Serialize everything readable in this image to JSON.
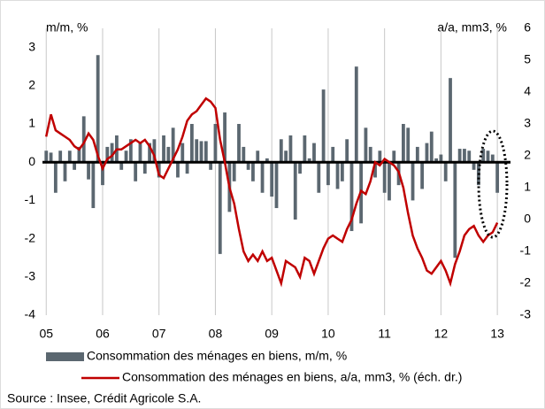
{
  "chart_data": {
    "type": "combo",
    "y_label": "m/m, %",
    "y2_label": "a/a, mm3, %",
    "source": "Source :  Insee, Crédit Agricole S.A.",
    "x": [
      0,
      1,
      2,
      3,
      4,
      5,
      6,
      7,
      8,
      9,
      10,
      11,
      12,
      13,
      14,
      15,
      16,
      17,
      18,
      19,
      20,
      21,
      22,
      23,
      24,
      25,
      26,
      27,
      28,
      29,
      30,
      31,
      32,
      33,
      34,
      35,
      36,
      37,
      38,
      39,
      40,
      41,
      42,
      43,
      44,
      45,
      46,
      47,
      48,
      49,
      50,
      51,
      52,
      53,
      54,
      55,
      56,
      57,
      58,
      59,
      60,
      61,
      62,
      63,
      64,
      65,
      66,
      67,
      68,
      69,
      70,
      71,
      72,
      73,
      74,
      75,
      76,
      77,
      78,
      79,
      80,
      81,
      82,
      83,
      84,
      85,
      86,
      87,
      88,
      89,
      90,
      91,
      92,
      93,
      94,
      95,
      96
    ],
    "xlim": [
      -0.8,
      98.8
    ],
    "xticks": [
      {
        "value": 0,
        "label": "05"
      },
      {
        "value": 12,
        "label": "06"
      },
      {
        "value": 24,
        "label": "07"
      },
      {
        "value": 36,
        "label": "08"
      },
      {
        "value": 48,
        "label": "09"
      },
      {
        "value": 60,
        "label": "10"
      },
      {
        "value": 72,
        "label": "11"
      },
      {
        "value": 84,
        "label": "12"
      },
      {
        "value": 96,
        "label": "13"
      }
    ],
    "ylim": [
      -4,
      3.5
    ],
    "yticks": [
      -4,
      -3,
      -2,
      -1,
      0,
      1,
      2,
      3
    ],
    "y2lim": [
      -3,
      6
    ],
    "y2ticks": [
      -3,
      -2,
      -1,
      0,
      1,
      2,
      3,
      4,
      5,
      6
    ],
    "grid": true,
    "series": [
      {
        "name": "Consommation des ménages en biens, m/m, %",
        "type": "bar",
        "color": "#5b6770",
        "values": [
          0.3,
          0.25,
          -0.8,
          0.3,
          -0.5,
          0.3,
          -0.2,
          0.4,
          1.2,
          -0.45,
          -1.2,
          2.8,
          -0.6,
          0.4,
          0.5,
          0.7,
          -0.2,
          0.3,
          0.6,
          -0.5,
          0.5,
          -0.3,
          0.5,
          0.6,
          -0.4,
          0.7,
          0.4,
          0.9,
          -0.4,
          0.5,
          -0.3,
          1.0,
          0.6,
          0.55,
          0.55,
          -0.2,
          1.0,
          -2.4,
          1.3,
          -1.3,
          -0.5,
          1.0,
          0.4,
          -0.2,
          -0.5,
          0.3,
          -0.8,
          0.1,
          -0.9,
          -1.2,
          0.6,
          0.3,
          0.7,
          -1.5,
          -0.3,
          0.7,
          0.1,
          0.5,
          -0.8,
          1.9,
          -0.6,
          0.4,
          -0.7,
          -0.5,
          0.6,
          -1.8,
          2.5,
          -1.6,
          0.9,
          0.4,
          -0.4,
          0.3,
          -0.8,
          -1.0,
          0.3,
          -0.6,
          1.0,
          0.9,
          -1.0,
          0.4,
          -0.7,
          0.5,
          0.8,
          0.1,
          0.2,
          -0.5,
          2.2,
          -2.5,
          0.35,
          0.35,
          0.3,
          -0.2,
          -0.6,
          0.35,
          0.3,
          0.2,
          -0.8
        ]
      },
      {
        "name": "Consommation des ménages en biens, a/a, mm3, % (éch. dr.)",
        "type": "line",
        "axis": "y2",
        "color": "#c00000",
        "values": [
          2.6,
          3.3,
          2.8,
          2.7,
          2.6,
          2.5,
          2.3,
          2.2,
          2.4,
          2.7,
          2.5,
          2.0,
          1.6,
          1.9,
          2.0,
          2.2,
          2.2,
          2.3,
          2.4,
          2.5,
          2.4,
          2.5,
          2.3,
          2.0,
          1.4,
          1.3,
          1.6,
          1.9,
          2.2,
          2.6,
          3.1,
          3.3,
          3.4,
          3.6,
          3.8,
          3.7,
          3.5,
          2.5,
          1.8,
          1.0,
          0.5,
          -0.3,
          -1.0,
          -1.3,
          -1.1,
          -1.3,
          -1.0,
          -1.3,
          -1.2,
          -1.6,
          -2.0,
          -1.3,
          -1.4,
          -1.5,
          -1.8,
          -1.2,
          -1.3,
          -1.7,
          -1.3,
          -0.9,
          -0.6,
          -0.5,
          -0.6,
          -0.7,
          -0.3,
          0.0,
          0.5,
          0.9,
          0.8,
          1.2,
          1.8,
          1.7,
          1.9,
          1.8,
          1.7,
          1.5,
          1.0,
          0.2,
          -0.5,
          -0.9,
          -1.2,
          -1.6,
          -1.7,
          -1.5,
          -1.3,
          -1.6,
          -2.0,
          -1.4,
          -1.0,
          -0.5,
          -0.3,
          -0.2,
          -0.5,
          -0.7,
          -0.5,
          -0.4,
          -0.1
        ]
      }
    ]
  }
}
